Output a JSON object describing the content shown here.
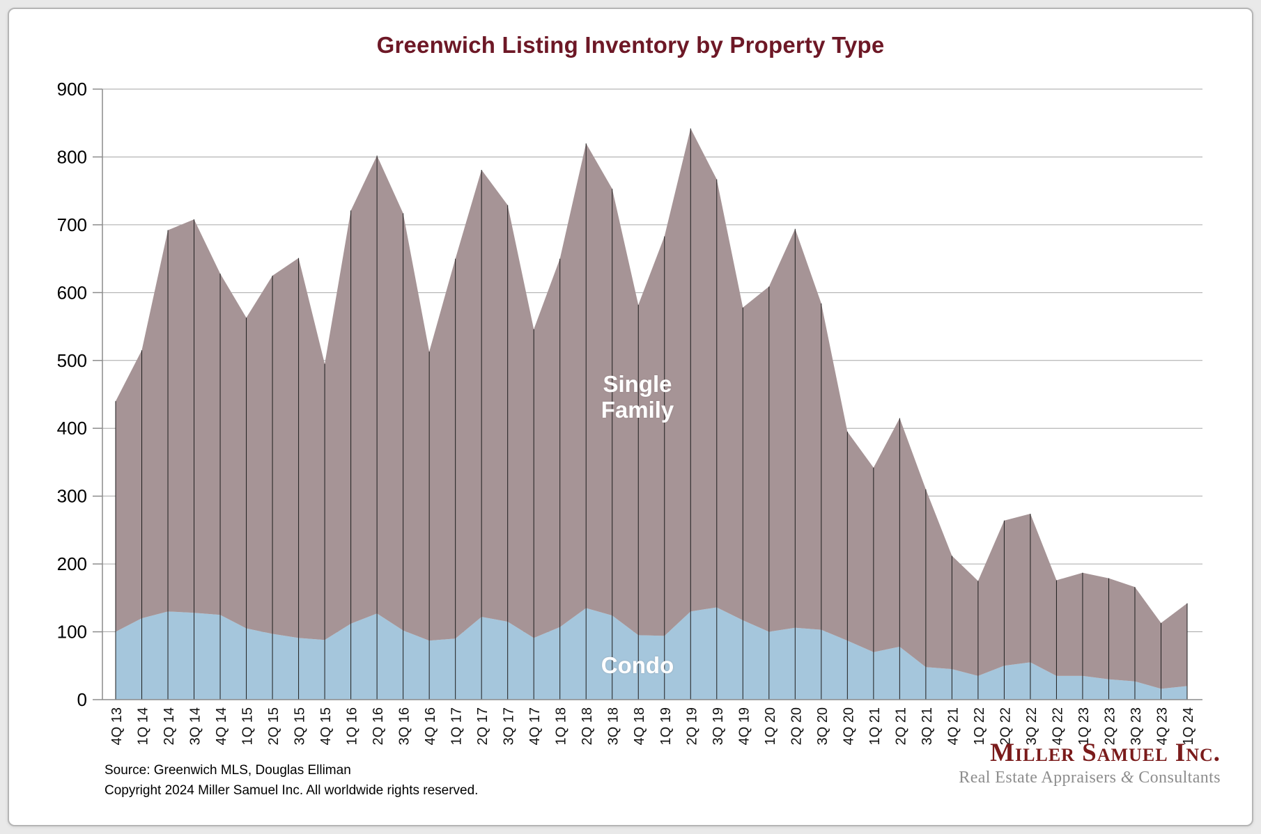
{
  "header": {
    "title": "Greenwich Listing Inventory by Property Type"
  },
  "labels": {
    "single_family_line1": "Single",
    "single_family_line2": "Family",
    "condo": "Condo"
  },
  "footer": {
    "source": "Source: Greenwich MLS, Douglas Elliman",
    "copyright": "Copyright 2024 Miller Samuel Inc.  All worldwide rights reserved."
  },
  "logo": {
    "name": "Miller Samuel Inc.",
    "tagline_pre": "Real Estate Appraisers ",
    "tagline_amp": "&",
    "tagline_post": " Consultants"
  },
  "colors": {
    "single_family_fill": "#a69496",
    "condo_fill": "#a5c6dc",
    "title_text": "#6d1826",
    "gridline": "#a6a6a6",
    "axis": "#8c8c8c",
    "dropline": "#1d1d1d",
    "logo_maroon": "#7a1b1b",
    "logo_gray": "#8d8d8d"
  },
  "chart_data": {
    "type": "area",
    "stacked": true,
    "title": "Greenwich Listing Inventory by Property Type",
    "xlabel": "",
    "ylabel": "",
    "ylim": [
      0,
      900
    ],
    "ytick_step": 100,
    "grid": true,
    "legend_position": "in-plot-labels",
    "categories": [
      "4Q 13",
      "1Q 14",
      "2Q 14",
      "3Q 14",
      "4Q 14",
      "1Q 15",
      "2Q 15",
      "3Q 15",
      "4Q 15",
      "1Q 16",
      "2Q 16",
      "3Q 16",
      "4Q 16",
      "1Q 17",
      "2Q 17",
      "3Q 17",
      "4Q 17",
      "1Q 18",
      "2Q 18",
      "3Q 18",
      "4Q 18",
      "1Q 19",
      "2Q 19",
      "3Q 19",
      "4Q 19",
      "1Q 20",
      "2Q 20",
      "3Q 20",
      "4Q 20",
      "1Q 21",
      "2Q 21",
      "3Q 21",
      "4Q 21",
      "1Q 22",
      "2Q 22",
      "3Q 22",
      "4Q 22",
      "1Q 23",
      "2Q 23",
      "3Q 23",
      "4Q 23",
      "1Q 24"
    ],
    "series": [
      {
        "name": "Condo",
        "color": "#a5c6dc",
        "values": [
          100,
          120,
          130,
          128,
          125,
          105,
          97,
          91,
          88,
          112,
          127,
          102,
          87,
          90,
          122,
          115,
          91,
          107,
          135,
          124,
          95,
          94,
          130,
          136,
          117,
          100,
          106,
          103,
          87,
          70,
          78,
          48,
          45,
          35,
          50,
          55,
          35,
          35,
          30,
          27,
          16,
          20
        ]
      },
      {
        "name": "Single Family",
        "color": "#a69496",
        "values": [
          340,
          395,
          562,
          580,
          503,
          458,
          528,
          560,
          407,
          609,
          675,
          615,
          426,
          560,
          659,
          614,
          455,
          543,
          685,
          629,
          487,
          589,
          712,
          631,
          461,
          509,
          588,
          481,
          308,
          272,
          337,
          262,
          167,
          140,
          214,
          219,
          141,
          152,
          149,
          139,
          97,
          122
        ]
      }
    ],
    "stacked_totals": [
      440,
      515,
      692,
      708,
      628,
      563,
      625,
      651,
      495,
      721,
      802,
      717,
      513,
      650,
      781,
      729,
      546,
      650,
      820,
      753,
      582,
      683,
      842,
      767,
      578,
      609,
      694,
      584,
      395,
      342,
      415,
      310,
      212,
      175,
      264,
      274,
      176,
      187,
      179,
      166,
      113,
      142
    ],
    "annotations": [
      "Single Family",
      "Condo"
    ]
  }
}
